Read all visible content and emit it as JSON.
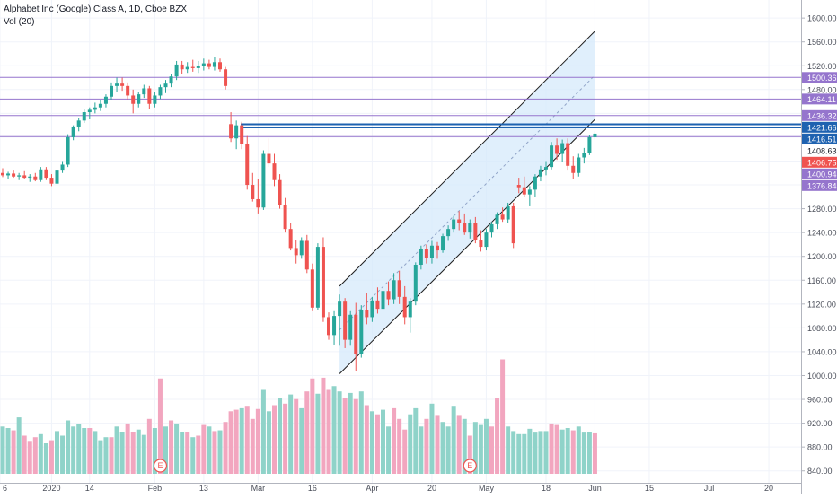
{
  "header": {
    "title": "Alphabet Inc (Google) Class A, 1D, Cboe BZX",
    "volume_label": "Vol (20)"
  },
  "colors": {
    "up": "#26a69a",
    "down": "#ef5350",
    "vol_up": "#8fd3c9",
    "vol_down": "#f2a6bf",
    "hline": "#9575cd",
    "blue_line": "#1e62b0",
    "channel_fill": "#d6e9fb",
    "channel_stroke": "#1f1f1f",
    "grid": "#f0f3fa",
    "axis_text": "#4a4e59"
  },
  "chart_data": {
    "type": "candlestick",
    "price_axis": {
      "ylim": [
        820,
        1610
      ],
      "ticks": [
        840,
        880,
        920,
        960,
        1000,
        1040,
        1080,
        1120,
        1160,
        1200,
        1240,
        1280,
        1320,
        1360,
        1400,
        1440,
        1480,
        1520,
        1560,
        1600
      ],
      "tick_labels": [
        "840.00",
        "880.00",
        "920.00",
        "960.00",
        "1000.00",
        "1040.00",
        "1080.00",
        "1120.00",
        "1160.00",
        "1200.00",
        "1240.00",
        "1280.00",
        "1320.00",
        "1360.00",
        "1400.00",
        "1440.00",
        "1480.00",
        "1520.00",
        "1560.00",
        "1600.00"
      ]
    },
    "x_axis": {
      "labels": [
        "6",
        "2020",
        "14",
        "Feb",
        "13",
        "Mar",
        "16",
        "Apr",
        "20",
        "May",
        "18",
        "Jun",
        "15",
        "Jul",
        "20"
      ],
      "label_bar_index": [
        -4,
        9,
        16,
        28,
        37,
        47,
        57,
        68,
        79,
        89,
        100,
        109,
        119,
        130,
        141
      ]
    },
    "price_tags": [
      {
        "value": "1500.36",
        "price": 1500.36,
        "color": "#9575cd",
        "line": true
      },
      {
        "value": "1464.11",
        "price": 1464.11,
        "color": "#9575cd",
        "line": true
      },
      {
        "value": "1436.32",
        "price": 1436.32,
        "color": "#9575cd",
        "line": true
      },
      {
        "value": "1421.66",
        "price": 1421.66,
        "color": "#1e62b0",
        "line": true
      },
      {
        "value": "1416.51",
        "price": 1416.51,
        "color": "#1e62b0",
        "line": true
      },
      {
        "value": "1408.63",
        "price": 1408.63,
        "color": "#ffffff",
        "line": false
      },
      {
        "value": "1406.75",
        "price": 1406.75,
        "color": "#ef5350",
        "line": false
      },
      {
        "value": "1400.94",
        "price": 1400.94,
        "color": "#9575cd",
        "line": true
      },
      {
        "value": "1376.84",
        "price": 1376.84,
        "color": "#9575cd",
        "line": false
      }
    ],
    "channel": {
      "lower_start": {
        "bar": 62,
        "price": 1003
      },
      "lower_end": {
        "bar": 109,
        "price": 1430
      },
      "upper_start": {
        "bar": 62,
        "price": 1150
      },
      "upper_end": {
        "bar": 109,
        "price": 1578
      }
    },
    "event_markers": [
      {
        "label": "E",
        "bar": 29
      },
      {
        "label": "E",
        "bar": 86
      }
    ],
    "candles": [
      [
        1340,
        1348,
        1333,
        1336
      ],
      [
        1336,
        1342,
        1330,
        1339
      ],
      [
        1339,
        1344,
        1332,
        1334
      ],
      [
        1334,
        1340,
        1328,
        1336
      ],
      [
        1336,
        1343,
        1330,
        1332
      ],
      [
        1332,
        1338,
        1325,
        1334
      ],
      [
        1334,
        1340,
        1326,
        1328
      ],
      [
        1328,
        1350,
        1325,
        1346
      ],
      [
        1346,
        1350,
        1328,
        1332
      ],
      [
        1332,
        1338,
        1318,
        1322
      ],
      [
        1322,
        1348,
        1318,
        1344
      ],
      [
        1344,
        1360,
        1340,
        1354
      ],
      [
        1354,
        1405,
        1350,
        1400
      ],
      [
        1400,
        1420,
        1395,
        1418
      ],
      [
        1418,
        1432,
        1410,
        1428
      ],
      [
        1428,
        1448,
        1424,
        1442
      ],
      [
        1442,
        1450,
        1430,
        1446
      ],
      [
        1446,
        1458,
        1440,
        1450
      ],
      [
        1450,
        1462,
        1444,
        1456
      ],
      [
        1456,
        1472,
        1450,
        1468
      ],
      [
        1468,
        1492,
        1462,
        1486
      ],
      [
        1486,
        1500,
        1476,
        1490
      ],
      [
        1490,
        1500,
        1478,
        1486
      ],
      [
        1486,
        1492,
        1462,
        1470
      ],
      [
        1470,
        1480,
        1440,
        1456
      ],
      [
        1456,
        1476,
        1450,
        1472
      ],
      [
        1472,
        1488,
        1466,
        1482
      ],
      [
        1482,
        1486,
        1448,
        1456
      ],
      [
        1456,
        1476,
        1450,
        1470
      ],
      [
        1470,
        1488,
        1464,
        1484
      ],
      [
        1484,
        1496,
        1474,
        1490
      ],
      [
        1490,
        1506,
        1484,
        1502
      ],
      [
        1502,
        1528,
        1496,
        1522
      ],
      [
        1522,
        1528,
        1506,
        1514
      ],
      [
        1514,
        1526,
        1508,
        1518
      ],
      [
        1518,
        1530,
        1510,
        1516
      ],
      [
        1516,
        1528,
        1508,
        1520
      ],
      [
        1520,
        1532,
        1512,
        1524
      ],
      [
        1524,
        1530,
        1514,
        1518
      ],
      [
        1518,
        1534,
        1512,
        1526
      ],
      [
        1526,
        1532,
        1510,
        1514
      ],
      [
        1514,
        1518,
        1480,
        1486
      ],
      [
        1422,
        1442,
        1392,
        1398
      ],
      [
        1398,
        1428,
        1380,
        1420
      ],
      [
        1420,
        1426,
        1380,
        1388
      ],
      [
        1388,
        1402,
        1312,
        1320
      ],
      [
        1320,
        1340,
        1292,
        1296
      ],
      [
        1296,
        1330,
        1272,
        1282
      ],
      [
        1282,
        1378,
        1278,
        1372
      ],
      [
        1372,
        1398,
        1350,
        1356
      ],
      [
        1356,
        1372,
        1318,
        1328
      ],
      [
        1328,
        1338,
        1280,
        1286
      ],
      [
        1286,
        1298,
        1240,
        1246
      ],
      [
        1246,
        1256,
        1210,
        1214
      ],
      [
        1214,
        1228,
        1188,
        1202
      ],
      [
        1202,
        1232,
        1196,
        1226
      ],
      [
        1226,
        1236,
        1172,
        1178
      ],
      [
        1178,
        1188,
        1108,
        1114
      ],
      [
        1114,
        1222,
        1110,
        1216
      ],
      [
        1216,
        1232,
        1090,
        1098
      ],
      [
        1098,
        1106,
        1060,
        1068
      ],
      [
        1068,
        1108,
        1052,
        1100
      ],
      [
        1100,
        1136,
        1050,
        1124
      ],
      [
        1124,
        1130,
        1046,
        1060
      ],
      [
        1060,
        1108,
        1050,
        1102
      ],
      [
        1102,
        1122,
        1008,
        1036
      ],
      [
        1036,
        1118,
        1030,
        1110
      ],
      [
        1110,
        1138,
        1086,
        1098
      ],
      [
        1098,
        1132,
        1090,
        1126
      ],
      [
        1126,
        1148,
        1104,
        1112
      ],
      [
        1112,
        1152,
        1102,
        1142
      ],
      [
        1142,
        1158,
        1118,
        1128
      ],
      [
        1128,
        1172,
        1120,
        1160
      ],
      [
        1160,
        1176,
        1120,
        1132
      ],
      [
        1132,
        1150,
        1086,
        1098
      ],
      [
        1098,
        1130,
        1072,
        1124
      ],
      [
        1124,
        1190,
        1118,
        1186
      ],
      [
        1186,
        1218,
        1178,
        1212
      ],
      [
        1212,
        1220,
        1188,
        1198
      ],
      [
        1198,
        1226,
        1188,
        1218
      ],
      [
        1218,
        1224,
        1196,
        1210
      ],
      [
        1210,
        1238,
        1206,
        1234
      ],
      [
        1234,
        1252,
        1226,
        1246
      ],
      [
        1246,
        1268,
        1240,
        1262
      ],
      [
        1262,
        1276,
        1244,
        1256
      ],
      [
        1256,
        1272,
        1236,
        1240
      ],
      [
        1240,
        1262,
        1230,
        1256
      ],
      [
        1256,
        1266,
        1222,
        1228
      ],
      [
        1228,
        1244,
        1208,
        1216
      ],
      [
        1216,
        1246,
        1210,
        1240
      ],
      [
        1240,
        1258,
        1232,
        1254
      ],
      [
        1254,
        1274,
        1246,
        1270
      ],
      [
        1270,
        1282,
        1258,
        1262
      ],
      [
        1262,
        1290,
        1256,
        1284
      ],
      [
        1284,
        1290,
        1214,
        1222
      ],
      [
        1320,
        1332,
        1306,
        1316
      ],
      [
        1316,
        1334,
        1300,
        1304
      ],
      [
        1304,
        1318,
        1284,
        1312
      ],
      [
        1312,
        1338,
        1300,
        1334
      ],
      [
        1334,
        1352,
        1326,
        1346
      ],
      [
        1346,
        1360,
        1336,
        1350
      ],
      [
        1350,
        1392,
        1346,
        1386
      ],
      [
        1386,
        1398,
        1362,
        1372
      ],
      [
        1372,
        1396,
        1358,
        1390
      ],
      [
        1390,
        1398,
        1344,
        1352
      ],
      [
        1352,
        1368,
        1330,
        1340
      ],
      [
        1340,
        1372,
        1334,
        1366
      ],
      [
        1366,
        1382,
        1356,
        1374
      ],
      [
        1374,
        1404,
        1370,
        1400
      ],
      [
        1400,
        1410,
        1396,
        1406
      ]
    ],
    "volumes": [
      [
        0.62,
        1
      ],
      [
        0.6,
        1
      ],
      [
        0.57,
        0
      ],
      [
        0.74,
        1
      ],
      [
        0.5,
        0
      ],
      [
        0.42,
        0
      ],
      [
        0.48,
        0
      ],
      [
        0.52,
        1
      ],
      [
        0.4,
        1
      ],
      [
        0.44,
        0
      ],
      [
        0.56,
        1
      ],
      [
        0.5,
        1
      ],
      [
        0.7,
        1
      ],
      [
        0.62,
        1
      ],
      [
        0.65,
        1
      ],
      [
        0.6,
        1
      ],
      [
        0.6,
        0
      ],
      [
        0.56,
        1
      ],
      [
        0.44,
        1
      ],
      [
        0.48,
        1
      ],
      [
        0.48,
        0
      ],
      [
        0.62,
        1
      ],
      [
        0.55,
        1
      ],
      [
        0.66,
        0
      ],
      [
        0.55,
        0
      ],
      [
        0.58,
        1
      ],
      [
        0.51,
        1
      ],
      [
        0.72,
        0
      ],
      [
        0.6,
        1
      ],
      [
        1.25,
        0
      ],
      [
        0.62,
        1
      ],
      [
        0.7,
        0
      ],
      [
        0.66,
        1
      ],
      [
        0.55,
        1
      ],
      [
        0.55,
        0
      ],
      [
        0.48,
        1
      ],
      [
        0.5,
        0
      ],
      [
        0.64,
        0
      ],
      [
        0.62,
        1
      ],
      [
        0.56,
        0
      ],
      [
        0.57,
        1
      ],
      [
        0.68,
        0
      ],
      [
        0.82,
        0
      ],
      [
        0.84,
        0
      ],
      [
        0.86,
        1
      ],
      [
        0.88,
        0
      ],
      [
        0.72,
        0
      ],
      [
        0.85,
        0
      ],
      [
        1.1,
        1
      ],
      [
        0.82,
        1
      ],
      [
        0.9,
        0
      ],
      [
        1.0,
        1
      ],
      [
        0.92,
        0
      ],
      [
        1.04,
        1
      ],
      [
        0.98,
        0
      ],
      [
        0.86,
        1
      ],
      [
        1.08,
        0
      ],
      [
        1.25,
        0
      ],
      [
        1.05,
        1
      ],
      [
        1.26,
        0
      ],
      [
        1.1,
        0
      ],
      [
        1.15,
        1
      ],
      [
        1.08,
        1
      ],
      [
        1.0,
        0
      ],
      [
        1.06,
        1
      ],
      [
        0.98,
        0
      ],
      [
        1.08,
        1
      ],
      [
        0.9,
        0
      ],
      [
        0.82,
        1
      ],
      [
        0.78,
        0
      ],
      [
        0.84,
        1
      ],
      [
        0.62,
        1
      ],
      [
        0.86,
        0
      ],
      [
        0.72,
        0
      ],
      [
        0.58,
        0
      ],
      [
        0.78,
        1
      ],
      [
        0.86,
        1
      ],
      [
        0.62,
        1
      ],
      [
        0.72,
        0
      ],
      [
        0.92,
        1
      ],
      [
        0.76,
        0
      ],
      [
        0.68,
        1
      ],
      [
        0.62,
        1
      ],
      [
        0.88,
        1
      ],
      [
        0.76,
        0
      ],
      [
        0.72,
        1
      ],
      [
        0.5,
        0
      ],
      [
        0.68,
        1
      ],
      [
        0.64,
        1
      ],
      [
        0.72,
        1
      ],
      [
        0.62,
        0
      ],
      [
        1.0,
        0
      ],
      [
        1.5,
        0
      ],
      [
        0.62,
        1
      ],
      [
        0.56,
        1
      ],
      [
        0.52,
        1
      ],
      [
        0.52,
        1
      ],
      [
        0.59,
        1
      ],
      [
        0.54,
        1
      ],
      [
        0.56,
        1
      ],
      [
        0.56,
        1
      ],
      [
        0.66,
        0
      ],
      [
        0.64,
        0
      ],
      [
        0.58,
        1
      ],
      [
        0.6,
        1
      ],
      [
        0.57,
        0
      ],
      [
        0.62,
        1
      ],
      [
        0.54,
        1
      ],
      [
        0.55,
        1
      ],
      [
        0.53,
        0
      ]
    ]
  }
}
